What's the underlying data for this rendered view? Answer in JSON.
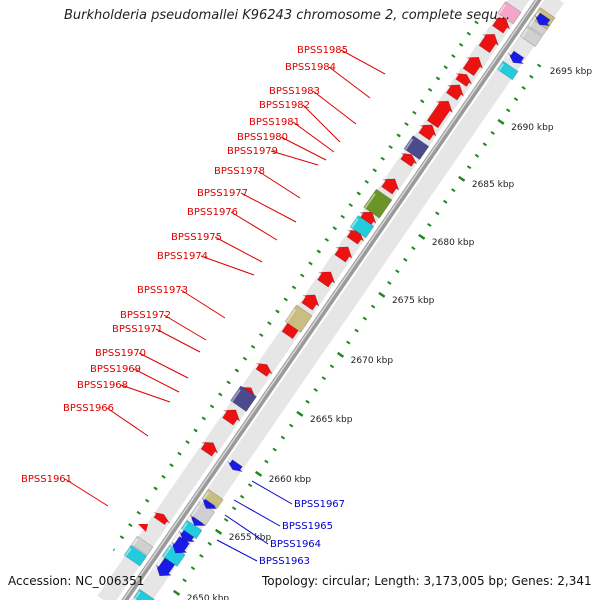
{
  "title": "Burkholderia pseudomallei K96243 chromosome 2, complete sequ...",
  "footer": {
    "accession": "Accession: NC_006351",
    "summary": "Topology: circular; Length: 3,173,005 bp; Genes: 2,341"
  },
  "colors": {
    "forward_label": "#dd0000",
    "reverse_label": "#0000cc",
    "backbone": "#8a8a8a",
    "tick": "#228822",
    "red": "#ee1111",
    "blue": "#1a1ae6",
    "cyan": "#22ccdd",
    "olive": "#c8be82",
    "slate": "#4a4a8c",
    "green": "#6a9428",
    "pink": "#f4a6c8",
    "grey": "#d0d0d0"
  },
  "kbp_ticks": [
    {
      "label": "2650 kbp"
    },
    {
      "label": "2655 kbp"
    },
    {
      "label": "2660 kbp"
    },
    {
      "label": "2665 kbp"
    },
    {
      "label": "2670 kbp"
    },
    {
      "label": "2675 kbp"
    },
    {
      "label": "2680 kbp"
    },
    {
      "label": "2685 kbp"
    },
    {
      "label": "2690 kbp"
    },
    {
      "label": "2695 kbp"
    }
  ],
  "forward_labels": [
    "BPSS1985",
    "BPSS1984",
    "BPSS1983",
    "BPSS1982",
    "BPSS1981",
    "BPSS1980",
    "BPSS1979",
    "BPSS1978",
    "BPSS1977",
    "BPSS1976",
    "BPSS1975",
    "BPSS1974",
    "BPSS1973",
    "BPSS1972",
    "BPSS1971",
    "BPSS1970",
    "BPSS1969",
    "BPSS1968",
    "BPSS1966",
    "BPSS1961"
  ],
  "reverse_labels": [
    "BPSS1967",
    "BPSS1965",
    "BPSS1964",
    "BPSS1963"
  ]
}
